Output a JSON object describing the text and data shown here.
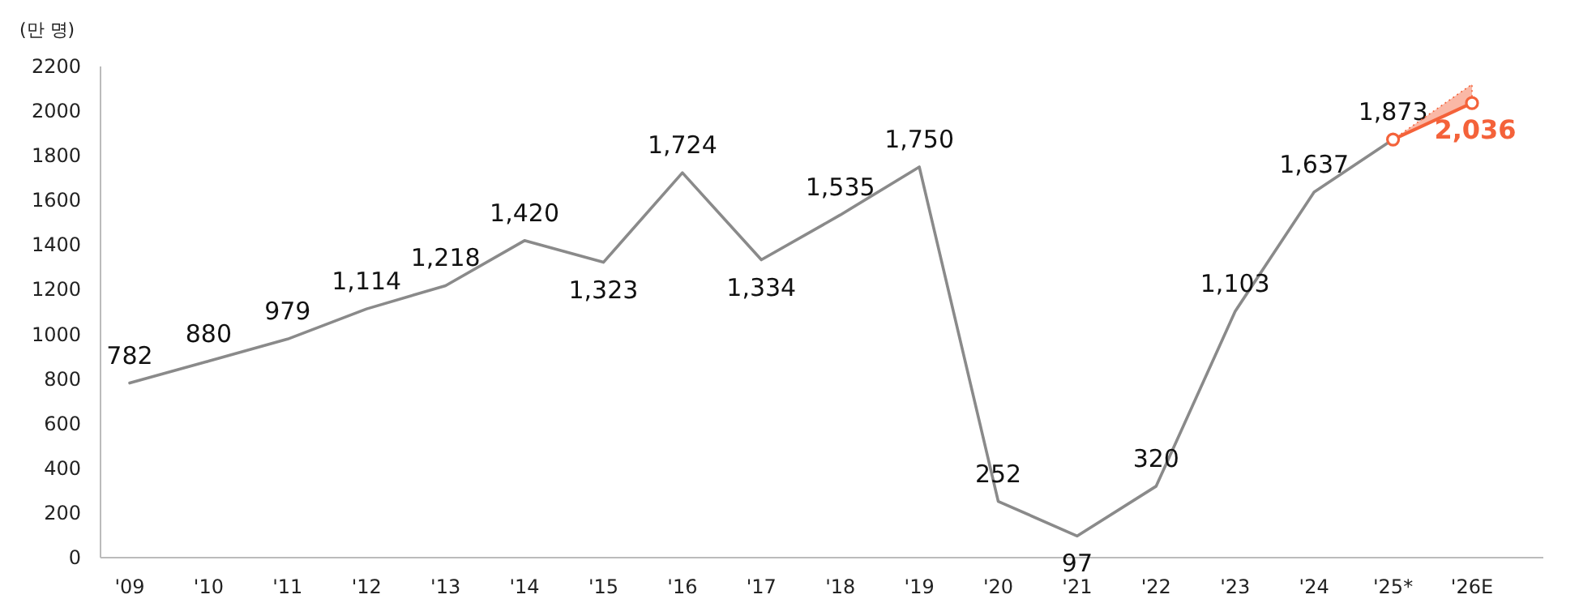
{
  "chart_data": {
    "type": "line",
    "ylabel": "(만 명)",
    "categories": [
      "'09",
      "'10",
      "'11",
      "'12",
      "'13",
      "'14",
      "'15",
      "'16",
      "'17",
      "'18",
      "'19",
      "'20",
      "'21",
      "'22",
      "'23",
      "'24",
      "'25*",
      "'26E"
    ],
    "ylim": [
      0,
      2200
    ],
    "yticks": [
      0,
      200,
      400,
      600,
      800,
      1000,
      1200,
      1400,
      1600,
      1800,
      2000,
      2200
    ],
    "series": [
      {
        "color": "#8a8a8a",
        "marker": "none",
        "values": [
          782,
          880,
          979,
          1114,
          1218,
          1420,
          1323,
          1724,
          1334,
          1535,
          1750,
          252,
          97,
          320,
          1103,
          1637,
          1873,
          null
        ],
        "value_labels": [
          "782",
          "880",
          "979",
          "1,114",
          "1,218",
          "1,420",
          "1,323",
          "1,724",
          "1,334",
          "1,535",
          "1,750",
          "252",
          "97",
          "320",
          "1,103",
          "1,637",
          "1,873",
          null
        ]
      },
      {
        "color": "#f4623a",
        "marker": "circle",
        "values": [
          null,
          null,
          null,
          null,
          null,
          null,
          null,
          null,
          null,
          null,
          null,
          null,
          null,
          null,
          null,
          null,
          1873,
          2036
        ],
        "lower": [
          null,
          null,
          null,
          null,
          null,
          null,
          null,
          null,
          null,
          null,
          null,
          null,
          null,
          null,
          null,
          null,
          1873,
          2036
        ],
        "upper": [
          null,
          null,
          null,
          null,
          null,
          null,
          null,
          null,
          null,
          null,
          null,
          null,
          null,
          null,
          null,
          null,
          1873,
          2120
        ],
        "value_labels": [
          null,
          null,
          null,
          null,
          null,
          null,
          null,
          null,
          null,
          null,
          null,
          null,
          null,
          null,
          null,
          null,
          null,
          "2,036"
        ]
      }
    ]
  }
}
